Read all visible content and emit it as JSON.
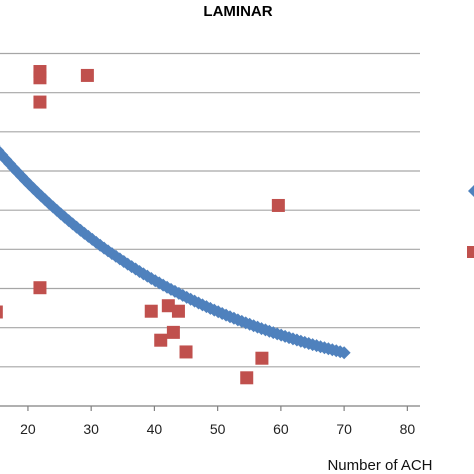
{
  "chart_data": {
    "type": "scatter",
    "title": "LAMINAR",
    "xlabel": "Number of ACH",
    "ylabel": "",
    "xlim": [
      14,
      82
    ],
    "ylim": [
      0,
      48
    ],
    "x_ticks": [
      20,
      30,
      40,
      50,
      60,
      70,
      80
    ],
    "y_gridlines": [
      5,
      10,
      15,
      20,
      25,
      30,
      35,
      40,
      45
    ],
    "grid": "horizontal",
    "series": [
      {
        "marker": "square",
        "color": "#C0504D",
        "points": [
          [
            15,
            12
          ],
          [
            21.9,
            15.1
          ],
          [
            21.9,
            38.8
          ],
          [
            21.9,
            41.9
          ],
          [
            21.9,
            42.7
          ],
          [
            29.4,
            42.2
          ],
          [
            39.5,
            12.1
          ],
          [
            41,
            8.4
          ],
          [
            42.2,
            12.8
          ],
          [
            43,
            9.4
          ],
          [
            43.8,
            12.1
          ],
          [
            45,
            6.9
          ],
          [
            54.6,
            3.6
          ],
          [
            57,
            6.1
          ],
          [
            59.6,
            25.6
          ]
        ]
      },
      {
        "marker": "diamond",
        "color": "#4F81BD",
        "fit": "exponential",
        "x_range": [
          14,
          70
        ],
        "y_start": 33.8,
        "y_end": 6.8
      }
    ]
  },
  "colors": {
    "grid": "#a6a6a6",
    "axis": "#808080"
  }
}
